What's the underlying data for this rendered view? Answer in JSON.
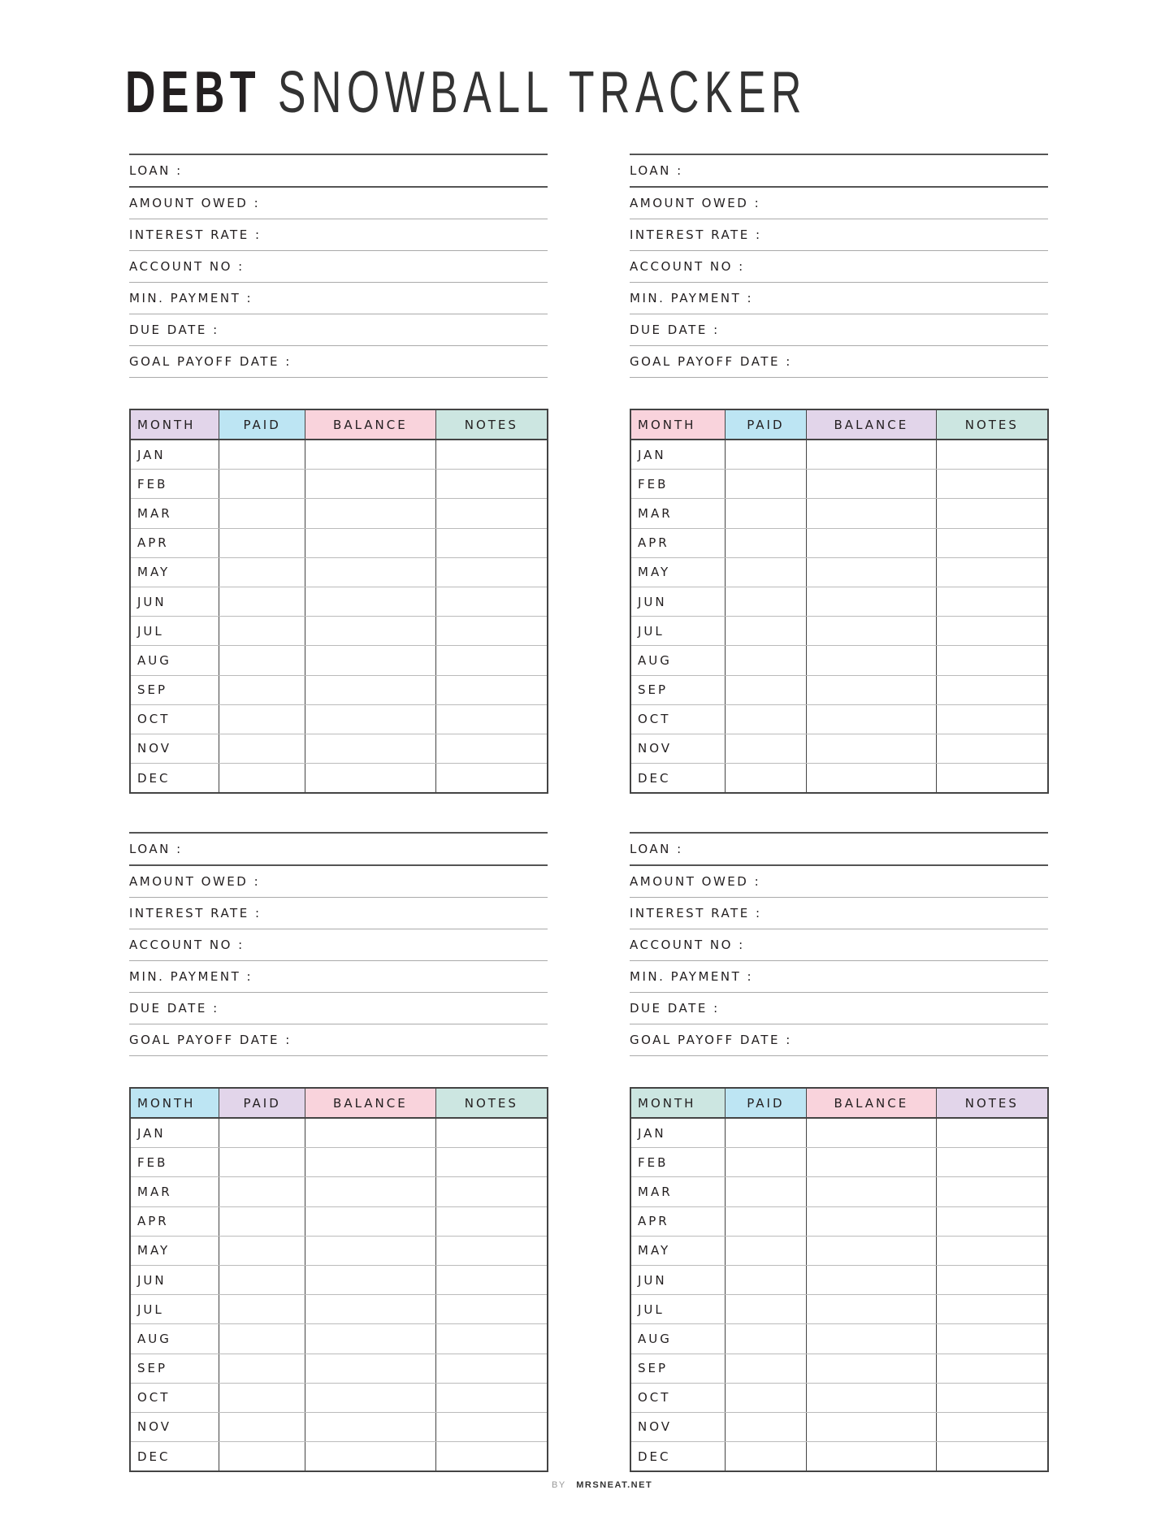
{
  "title": {
    "bold": "DEBT",
    "light": "SNOWBALL TRACKER"
  },
  "field_labels": [
    "LOAN :",
    "AMOUNT OWED :",
    "INTEREST RATE :",
    "ACCOUNT NO :",
    "MIN. PAYMENT :",
    "DUE DATE :",
    "GOAL PAYOFF DATE  :"
  ],
  "columns": [
    "MONTH",
    "PAID",
    "BALANCE",
    "NOTES"
  ],
  "months": [
    "JAN",
    "FEB",
    "MAR",
    "APR",
    "MAY",
    "JUN",
    "JUL",
    "AUG",
    "SEP",
    "OCT",
    "NOV",
    "DEC"
  ],
  "colors": {
    "purple": "#e2d5ea",
    "blue": "#bde5f3",
    "pink": "#f9d3dc",
    "teal": "#cce6e1"
  },
  "trackers": [
    {
      "header_colors": [
        "purple",
        "blue",
        "pink",
        "teal"
      ]
    },
    {
      "header_colors": [
        "pink",
        "blue",
        "purple",
        "teal"
      ]
    },
    {
      "header_colors": [
        "blue",
        "purple",
        "pink",
        "teal"
      ]
    },
    {
      "header_colors": [
        "teal",
        "blue",
        "pink",
        "purple"
      ]
    }
  ],
  "footer": {
    "by": "BY",
    "site": "MRSNEAT.NET"
  }
}
